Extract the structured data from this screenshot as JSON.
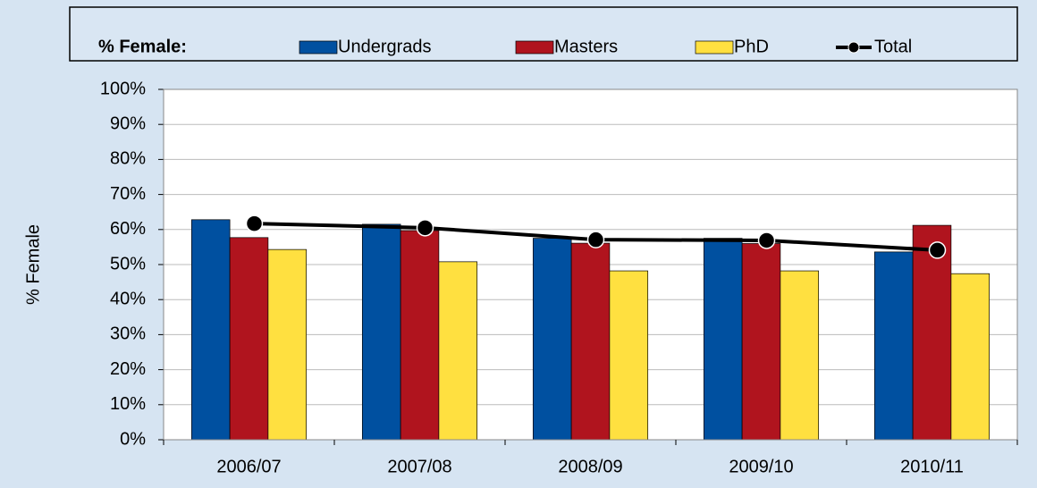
{
  "chart_data": {
    "type": "bar",
    "legend_title": "% Female:",
    "y_label": "% Female",
    "categories": [
      "2006/07",
      "2007/08",
      "2008/09",
      "2009/10",
      "2010/11"
    ],
    "series": [
      {
        "name": "Undergrads",
        "color": "#0050a0",
        "values": [
          62.8,
          61.5,
          57.5,
          57.5,
          53.6
        ]
      },
      {
        "name": "Masters",
        "color": "#b0141e",
        "values": [
          57.7,
          59.7,
          56.1,
          56.0,
          61.2
        ]
      },
      {
        "name": "PhD",
        "color": "#ffe040",
        "values": [
          54.3,
          50.8,
          48.2,
          48.2,
          47.4
        ]
      },
      {
        "name": "Total",
        "type": "line",
        "color": "#000000",
        "values": [
          61.7,
          60.5,
          57.1,
          56.9,
          54.1
        ]
      }
    ],
    "ylim": [
      0,
      100
    ],
    "yticks": [
      {
        "value": 0,
        "label": "0%"
      },
      {
        "value": 10,
        "label": "10%"
      },
      {
        "value": 20,
        "label": "20%"
      },
      {
        "value": 30,
        "label": "30%"
      },
      {
        "value": 40,
        "label": "40%"
      },
      {
        "value": 50,
        "label": "50%"
      },
      {
        "value": 60,
        "label": "60%"
      },
      {
        "value": 70,
        "label": "70%"
      },
      {
        "value": 80,
        "label": "80%"
      },
      {
        "value": 90,
        "label": "90%"
      },
      {
        "value": 100,
        "label": "100%"
      }
    ],
    "grid": true
  }
}
